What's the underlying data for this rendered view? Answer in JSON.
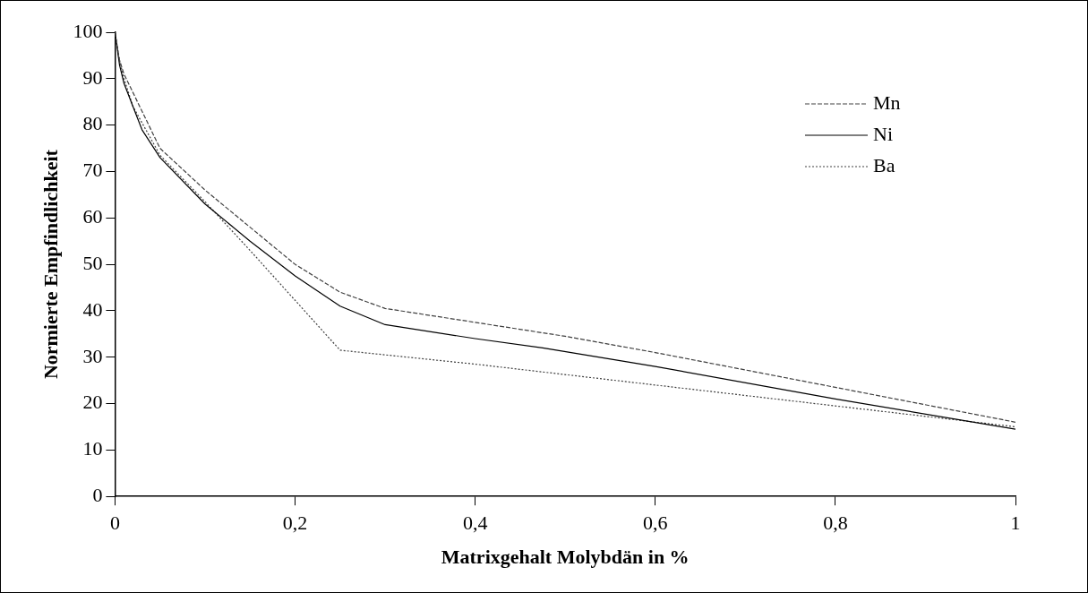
{
  "chart_data": {
    "type": "line",
    "xlabel": "Matrixgehalt Molybdän in %",
    "ylabel": "Normierte Empfindlichkeit",
    "xlim": [
      0,
      1
    ],
    "xticks": [
      0,
      {
        "value": 0.2,
        "label": "0,2"
      },
      {
        "value": 0.4,
        "label": "0,4"
      },
      {
        "value": 0.6,
        "label": "0,6"
      },
      {
        "value": 0.8,
        "label": "0,8"
      },
      1
    ],
    "ylim": [
      0,
      100
    ],
    "yticks": [
      0,
      10,
      20,
      30,
      40,
      50,
      60,
      70,
      80,
      90,
      100
    ],
    "grid": false,
    "legend": "top right",
    "marker": "none",
    "series": [
      {
        "name": "Mn",
        "color": "#404040",
        "line_style": "dashed",
        "x": [
          0,
          0.005,
          0.01,
          0.02,
          0.05,
          0.1,
          0.15,
          0.2,
          0.25,
          0.3,
          0.4,
          0.5,
          0.6,
          0.8,
          1
        ],
        "values": [
          100,
          94,
          91,
          87,
          75,
          66,
          58,
          50,
          44,
          40.5,
          37.5,
          34.5,
          31,
          23.5,
          16
        ]
      },
      {
        "name": "Ni",
        "color": "#000000",
        "line_style": "solid",
        "x": [
          0,
          0.005,
          0.01,
          0.02,
          0.03,
          0.05,
          0.1,
          0.15,
          0.2,
          0.25,
          0.3,
          0.4,
          0.475,
          0.6,
          0.8,
          1
        ],
        "values": [
          100,
          93,
          89,
          84,
          79,
          73,
          63,
          55,
          47.5,
          41,
          37,
          34,
          32,
          28,
          21,
          14.5
        ]
      },
      {
        "name": "Ba",
        "color": "#404040",
        "line_style": "dotted",
        "x": [
          0,
          0.005,
          0.01,
          0.02,
          0.05,
          0.1,
          0.15,
          0.25,
          0.4,
          0.6,
          0.8,
          1
        ],
        "values": [
          100,
          94,
          90,
          84,
          73.5,
          63.5,
          53,
          31.5,
          28.5,
          24,
          19.5,
          15
        ]
      }
    ]
  }
}
